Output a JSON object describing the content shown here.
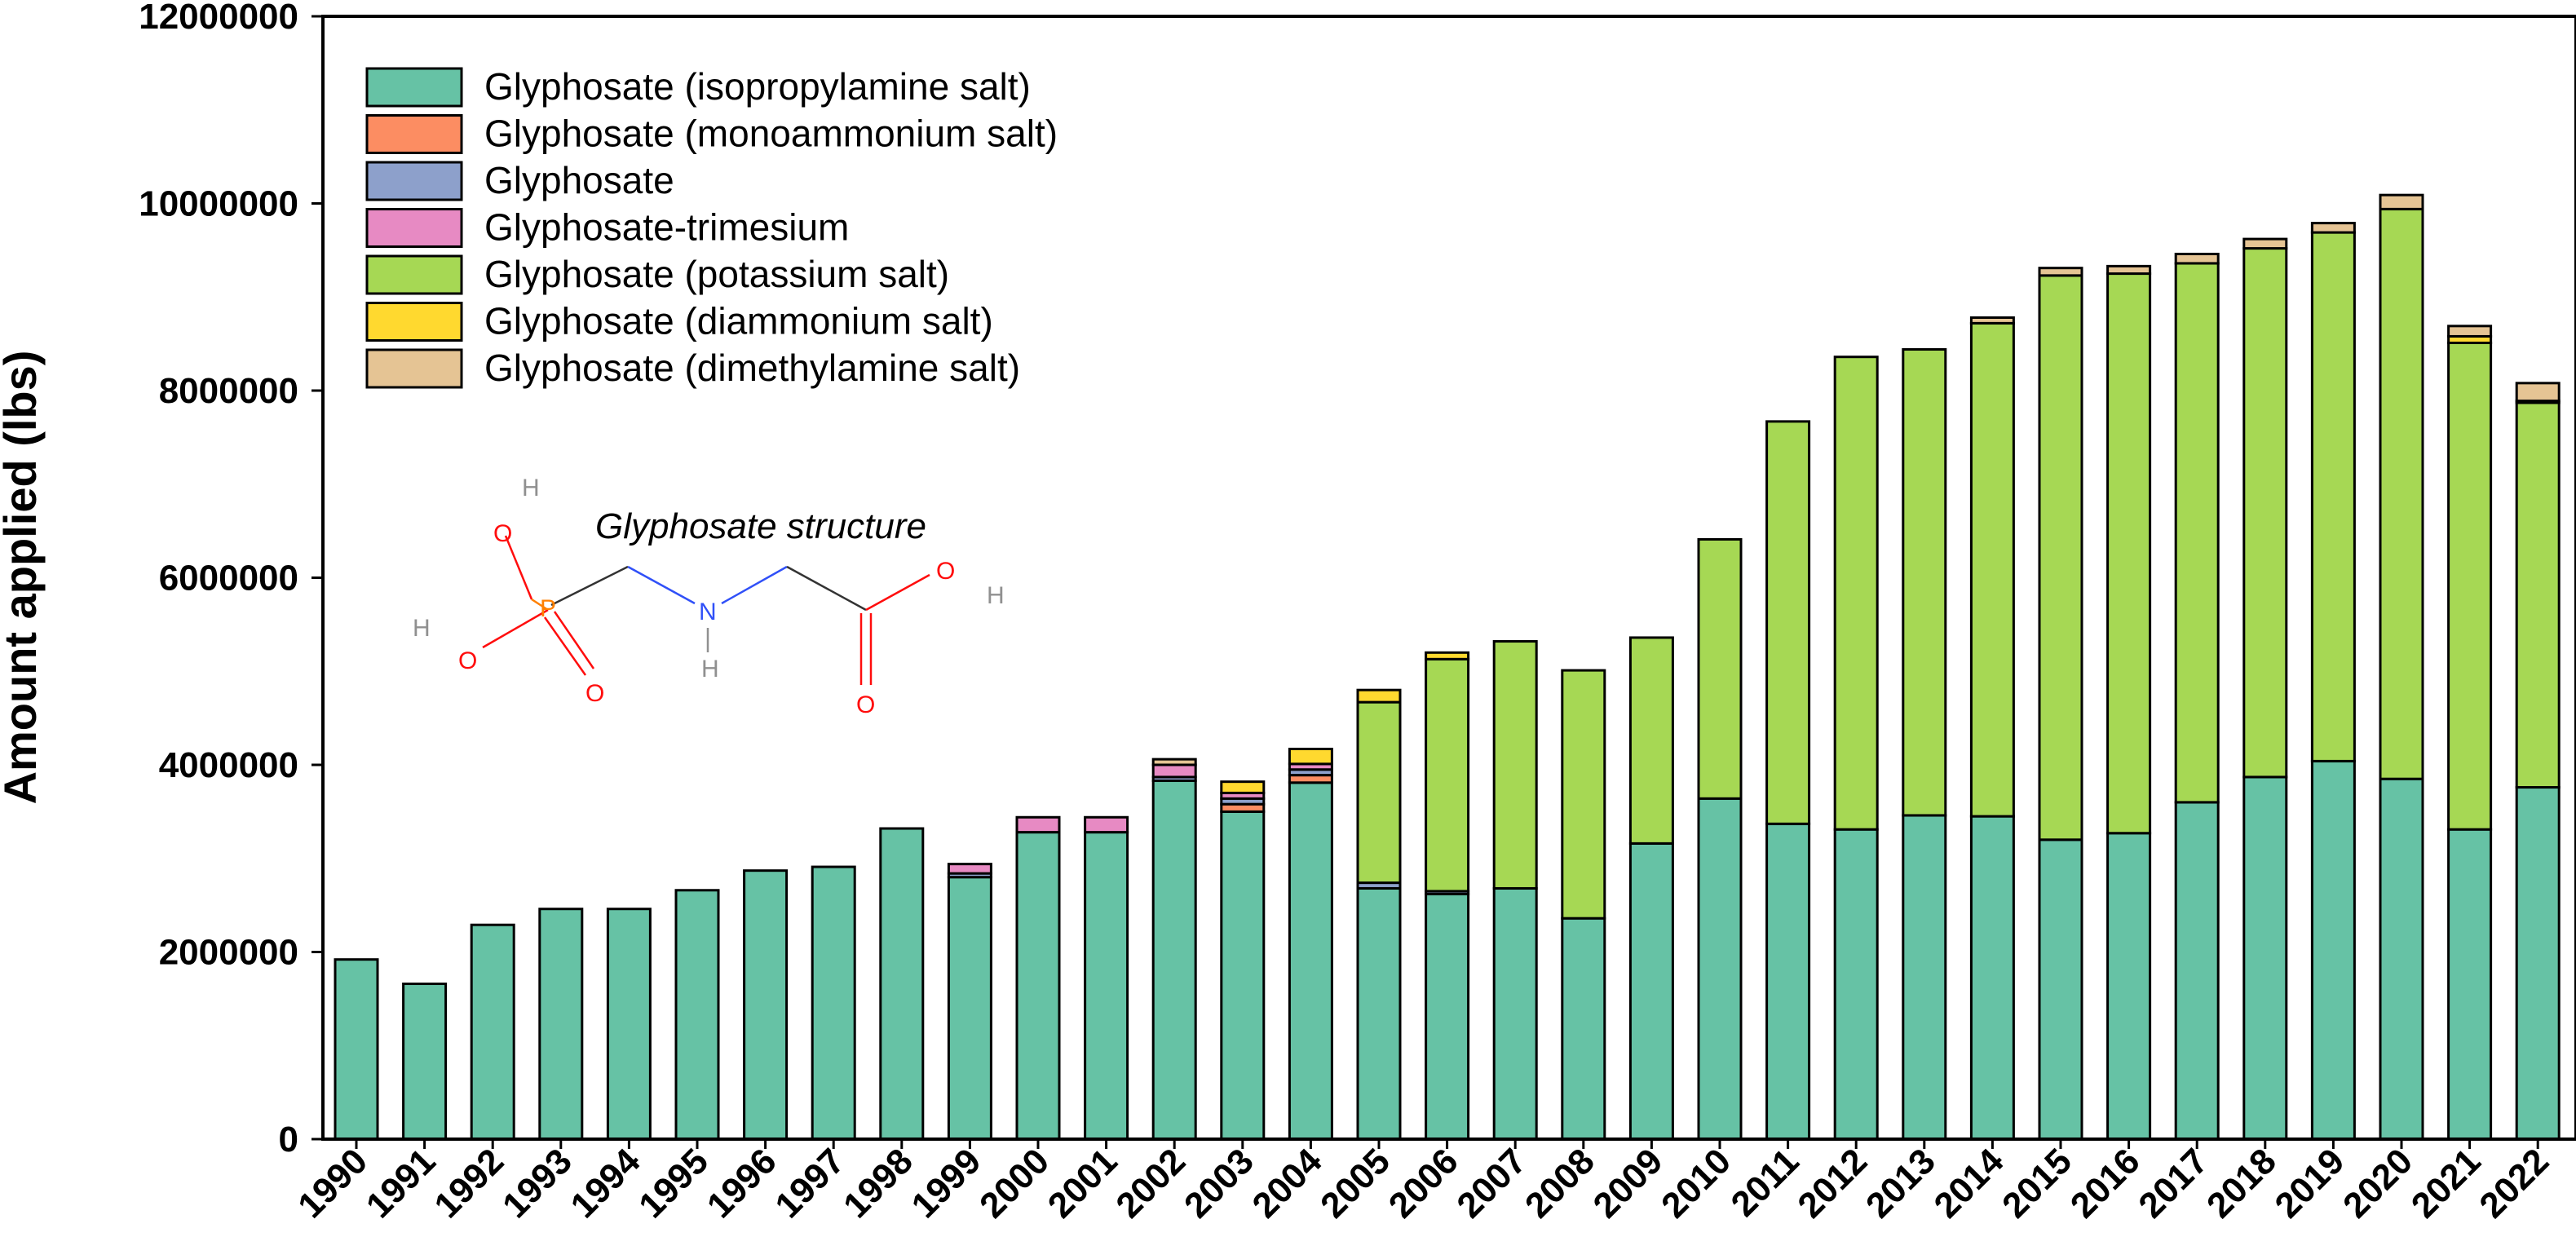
{
  "chart_data": {
    "type": "bar",
    "stacked": true,
    "ylabel": "Amount applied (lbs)",
    "xlabel": "",
    "ylim": [
      0,
      12000000
    ],
    "yticks": [
      "0",
      "2000000",
      "4000000",
      "6000000",
      "8000000",
      "10000000",
      "12000000"
    ],
    "categories": [
      "1990",
      "1991",
      "1992",
      "1993",
      "1994",
      "1995",
      "1996",
      "1997",
      "1998",
      "1999",
      "2000",
      "2001",
      "2002",
      "2003",
      "2004",
      "2005",
      "2006",
      "2007",
      "2008",
      "2009",
      "2010",
      "2011",
      "2012",
      "2013",
      "2014",
      "2015",
      "2016",
      "2017",
      "2018",
      "2019",
      "2020",
      "2021",
      "2022"
    ],
    "series": [
      {
        "name": "Glyphosate (isopropylamine salt)",
        "color": "#66c2a5",
        "values": [
          1920000,
          1660000,
          2290000,
          2460000,
          2460000,
          2660000,
          2870000,
          2910000,
          3320000,
          2800000,
          3280000,
          3280000,
          3830000,
          3500000,
          3810000,
          2680000,
          2620000,
          2680000,
          2360000,
          3160000,
          3640000,
          3370000,
          3310000,
          3460000,
          3450000,
          3200000,
          3270000,
          3600000,
          3870000,
          4040000,
          3850000,
          3310000,
          3760000
        ]
      },
      {
        "name": "Glyphosate (monoammonium salt)",
        "color": "#fc8d62",
        "values": [
          0,
          0,
          0,
          0,
          0,
          0,
          0,
          0,
          0,
          0,
          0,
          0,
          0,
          80000,
          80000,
          0,
          0,
          0,
          0,
          0,
          0,
          0,
          0,
          0,
          0,
          0,
          0,
          0,
          0,
          0,
          0,
          0,
          0
        ]
      },
      {
        "name": "Glyphosate",
        "color": "#8da0cb",
        "values": [
          0,
          0,
          0,
          0,
          0,
          0,
          0,
          0,
          0,
          40000,
          0,
          0,
          40000,
          60000,
          60000,
          60000,
          30000,
          0,
          0,
          0,
          0,
          0,
          0,
          0,
          0,
          0,
          0,
          0,
          0,
          0,
          0,
          0,
          0
        ]
      },
      {
        "name": "Glyphosate-trimesium",
        "color": "#e78ac3",
        "values": [
          0,
          0,
          0,
          0,
          0,
          0,
          0,
          0,
          0,
          100000,
          160000,
          160000,
          130000,
          60000,
          60000,
          0,
          0,
          0,
          0,
          0,
          0,
          0,
          0,
          0,
          0,
          0,
          0,
          0,
          0,
          0,
          0,
          0,
          0
        ]
      },
      {
        "name": "Glyphosate (potassium salt)",
        "color": "#a6d854",
        "values": [
          0,
          0,
          0,
          0,
          0,
          0,
          0,
          0,
          0,
          0,
          0,
          0,
          0,
          0,
          0,
          1930000,
          2480000,
          2640000,
          2650000,
          2200000,
          2770000,
          4300000,
          5050000,
          4980000,
          5270000,
          6030000,
          5980000,
          5760000,
          5650000,
          5650000,
          6090000,
          5200000,
          4110000
        ]
      },
      {
        "name": "Glyphosate (diammonium salt)",
        "color": "#ffd92f",
        "values": [
          0,
          0,
          0,
          0,
          0,
          0,
          0,
          0,
          0,
          0,
          0,
          0,
          0,
          120000,
          160000,
          130000,
          70000,
          0,
          0,
          0,
          0,
          0,
          0,
          0,
          0,
          0,
          0,
          0,
          0,
          0,
          0,
          70000,
          20000
        ]
      },
      {
        "name": "Glyphosate (dimethylamine salt)",
        "color": "#e5c494",
        "values": [
          0,
          0,
          0,
          0,
          0,
          0,
          0,
          0,
          0,
          0,
          0,
          0,
          60000,
          0,
          0,
          0,
          0,
          0,
          0,
          0,
          0,
          0,
          0,
          0,
          60000,
          80000,
          80000,
          100000,
          100000,
          100000,
          150000,
          110000,
          190000
        ]
      }
    ],
    "annotations": [
      {
        "text": "Glyphosate structure"
      }
    ],
    "legend_position": "top-left"
  },
  "structure": {
    "title": "Glyphosate structure",
    "atoms": {
      "H": "H",
      "O": "O",
      "P": "P",
      "N": "N"
    },
    "colors": {
      "P": "#ff8000",
      "O": "#ff0d0d",
      "N": "#3050f8",
      "H": "#909090",
      "bond": "#333333"
    }
  }
}
